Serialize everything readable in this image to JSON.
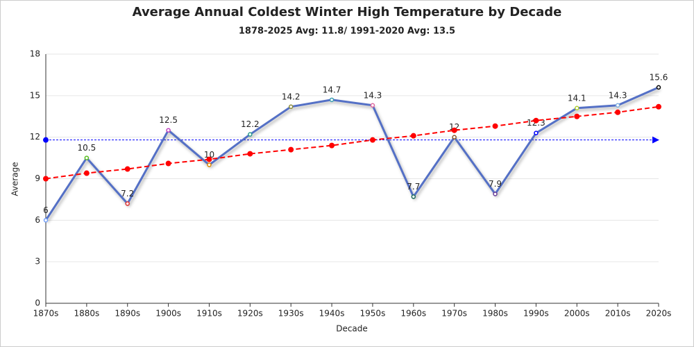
{
  "chart_data": {
    "type": "line",
    "title": "Average Annual Coldest Winter High Temperature  by Decade",
    "subtitle": "1878-2025 Avg: 11.8/ 1991-2020 Avg: 13.5",
    "x_label": "Decade",
    "y_label": "Average",
    "categories": [
      "1870s",
      "1880s",
      "1890s",
      "1900s",
      "1910s",
      "1920s",
      "1930s",
      "1940s",
      "1950s",
      "1960s",
      "1970s",
      "1980s",
      "1990s",
      "2000s",
      "2010s",
      "2020s"
    ],
    "series": [
      {
        "color": "#5470c6",
        "values": [
          6,
          10.5,
          7.2,
          12.5,
          10,
          12.2,
          14.2,
          14.7,
          14.3,
          7.7,
          12,
          7.9,
          12.3,
          14.1,
          14.3,
          15.6
        ],
        "marker_colors": [
          "#73a0fa",
          "#5bc020",
          "#e03030",
          "#c040c0",
          "#e08a00",
          "#2a9d8f",
          "#8c8c3c",
          "#3a9db0",
          "#e06aa0",
          "#1a6a5a",
          "#8b5a2b",
          "#6a3d9a",
          "#0000ff",
          "#b0d030",
          "#80b0e0",
          "#000000"
        ],
        "labeled": true
      },
      {
        "color": "#ff0000",
        "dashed": true,
        "values": [
          9.0,
          9.4,
          9.7,
          10.1,
          10.4,
          10.8,
          11.1,
          11.4,
          11.8,
          12.1,
          12.5,
          12.8,
          13.2,
          13.5,
          13.8,
          14.2
        ]
      }
    ],
    "average_line": {
      "value": 11.8,
      "color": "#0000ff"
    },
    "ylim": [
      0,
      18
    ],
    "yticks": [
      0,
      3,
      6,
      9,
      12,
      15,
      18
    ],
    "grid": true
  }
}
